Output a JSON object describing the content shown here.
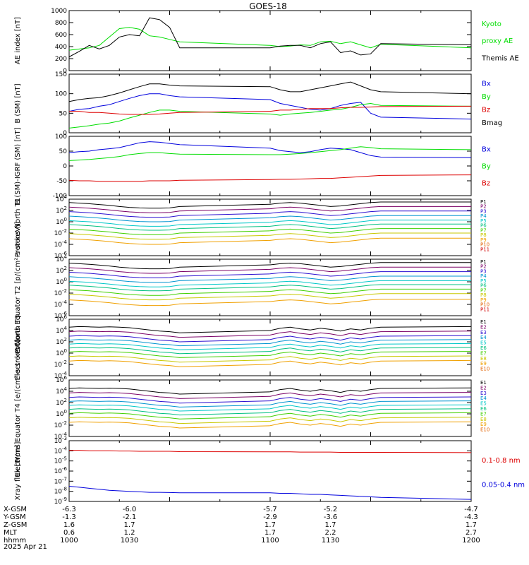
{
  "title": "GOES-18",
  "date": "2025 Apr 21",
  "colors": {
    "black": "#000000",
    "blue": "#0000dd",
    "green": "#00dd00",
    "red": "#dd0000",
    "P1": "#000000",
    "P2": "#7a0066",
    "P3": "#2b0fd0",
    "P4": "#0094d0",
    "P5": "#00c8c8",
    "P6": "#00c080",
    "P7": "#40d000",
    "P8": "#c8c800",
    "P9": "#f0a000",
    "P10": "#e06000",
    "P11": "#d00000"
  },
  "chart_data": [
    {
      "type": "line",
      "id": "ae",
      "ylabel": "AE index [nT]",
      "ylim": [
        0,
        1000
      ],
      "yticks": [
        "1000",
        "800",
        "600",
        "400",
        "200",
        "0"
      ],
      "x": [
        1000,
        1005,
        1010,
        1015,
        1020,
        1025,
        1030,
        1035,
        1040,
        1045,
        1050,
        1055,
        1100,
        1105,
        1110,
        1115,
        1120,
        1125,
        1130,
        1135,
        1140,
        1145,
        1150,
        1155,
        1200
      ],
      "series": [
        {
          "name": "Kyoto proxy AE",
          "color": "#00dd00",
          "values": [
            340,
            360,
            380,
            420,
            560,
            700,
            720,
            690,
            580,
            560,
            520,
            480,
            420,
            400,
            410,
            430,
            420,
            480,
            490,
            450,
            480,
            430,
            380,
            440,
            380
          ]
        },
        {
          "name": "Themis AE",
          "color": "#000000",
          "values": [
            230,
            320,
            420,
            360,
            420,
            560,
            600,
            580,
            880,
            850,
            720,
            380,
            380,
            410,
            420,
            420,
            380,
            450,
            480,
            300,
            330,
            260,
            280,
            450,
            430
          ]
        }
      ]
    },
    {
      "type": "line",
      "id": "bsm",
      "ylabel": "B (SM) [nT]",
      "ylim": [
        0,
        150
      ],
      "yticks": [
        "150",
        "100",
        "50",
        "0"
      ],
      "x": [
        1000,
        1005,
        1010,
        1015,
        1020,
        1025,
        1030,
        1035,
        1040,
        1045,
        1050,
        1055,
        1100,
        1105,
        1110,
        1115,
        1120,
        1125,
        1130,
        1135,
        1140,
        1145,
        1150,
        1155,
        1200
      ],
      "series": [
        {
          "name": "Bx",
          "color": "#0000dd",
          "values": [
            55,
            60,
            62,
            68,
            72,
            80,
            88,
            95,
            100,
            100,
            95,
            92,
            85,
            75,
            70,
            65,
            60,
            58,
            62,
            70,
            75,
            78,
            50,
            40,
            35
          ]
        },
        {
          "name": "By",
          "color": "#00dd00",
          "values": [
            12,
            15,
            18,
            22,
            25,
            30,
            38,
            45,
            52,
            58,
            58,
            55,
            48,
            45,
            48,
            50,
            52,
            55,
            58,
            60,
            65,
            72,
            75,
            70,
            68
          ]
        },
        {
          "name": "Bz",
          "color": "#dd0000",
          "values": [
            55,
            55,
            52,
            52,
            50,
            48,
            47,
            47,
            47,
            48,
            50,
            52,
            55,
            58,
            58,
            60,
            62,
            62,
            62,
            64,
            65,
            65,
            66,
            67,
            68
          ]
        },
        {
          "name": "Bmag",
          "color": "#000000",
          "values": [
            80,
            85,
            88,
            90,
            95,
            102,
            110,
            118,
            125,
            125,
            122,
            120,
            118,
            110,
            105,
            105,
            110,
            115,
            120,
            125,
            130,
            120,
            110,
            105,
            100
          ]
        }
      ]
    },
    {
      "type": "line",
      "id": "bigrf",
      "ylabel": "B (SM)-IGRF (SM) [nT]",
      "ylim": [
        -100,
        100
      ],
      "yticks": [
        "100",
        "50",
        "0",
        "-50",
        "-100"
      ],
      "x": [
        1000,
        1005,
        1010,
        1015,
        1020,
        1025,
        1030,
        1035,
        1040,
        1045,
        1050,
        1055,
        1100,
        1105,
        1110,
        1115,
        1120,
        1125,
        1130,
        1135,
        1140,
        1145,
        1150,
        1155,
        1200
      ],
      "series": [
        {
          "name": "Bx",
          "color": "#0000dd",
          "values": [
            45,
            48,
            50,
            55,
            58,
            62,
            70,
            78,
            82,
            80,
            76,
            72,
            60,
            52,
            48,
            45,
            48,
            55,
            60,
            58,
            55,
            45,
            35,
            30,
            28
          ]
        },
        {
          "name": "By",
          "color": "#00dd00",
          "values": [
            18,
            20,
            22,
            25,
            28,
            32,
            38,
            42,
            45,
            45,
            42,
            40,
            38,
            38,
            40,
            42,
            45,
            48,
            52,
            55,
            60,
            65,
            62,
            58,
            55
          ]
        },
        {
          "name": "Bz",
          "color": "#dd0000",
          "values": [
            -48,
            -50,
            -50,
            -52,
            -52,
            -52,
            -52,
            -52,
            -50,
            -50,
            -50,
            -48,
            -46,
            -45,
            -45,
            -44,
            -43,
            -42,
            -42,
            -40,
            -38,
            -36,
            -34,
            -32,
            -30
          ]
        }
      ]
    },
    {
      "type": "line",
      "id": "pnt1",
      "log": true,
      "ylabel": "Protons North T1",
      "ylim": [
        -6,
        4
      ],
      "yticks": [
        "10^4",
        "10^2",
        "10^0",
        "10^-2",
        "10^-4",
        "10^-6"
      ],
      "channels": [
        "P1",
        "P2",
        "P3",
        "P4",
        "P5",
        "P6",
        "P7",
        "P8",
        "P9",
        "P10",
        "P11"
      ],
      "x": [
        1000,
        1005,
        1010,
        1015,
        1020,
        1025,
        1030,
        1035,
        1040,
        1045,
        1050,
        1055,
        1100,
        1105,
        1110,
        1115,
        1120,
        1125,
        1130,
        1135,
        1140,
        1145,
        1150,
        1155,
        1200
      ],
      "shape": [
        0,
        -0.1,
        -0.2,
        -0.35,
        -0.5,
        -0.7,
        -0.85,
        -0.95,
        -1,
        -1,
        -0.95,
        -0.7,
        -0.3,
        -0.1,
        0,
        -0.1,
        -0.3,
        -0.5,
        -0.7,
        -0.6,
        -0.4,
        -0.2,
        0,
        0.1,
        0.1
      ],
      "base": [
        3.4,
        2.6,
        1.8,
        1.0,
        0.2,
        -0.5,
        -1.3,
        -2.1,
        -3.0
      ]
    },
    {
      "type": "line",
      "id": "pet2",
      "log": true,
      "ylabel": "Protons Equator T2 [p/(cm²-s-sr-keV)]",
      "ylim": [
        -6,
        4
      ],
      "yticks": [
        "10^4",
        "10^2",
        "10^0",
        "10^-2",
        "10^-4",
        "10^-6"
      ],
      "channels": [
        "P1",
        "P2",
        "P3",
        "P4",
        "P5",
        "P6",
        "P7",
        "P8",
        "P9",
        "P10",
        "P11"
      ],
      "x": [
        1000,
        1005,
        1010,
        1015,
        1020,
        1025,
        1030,
        1035,
        1040,
        1045,
        1050,
        1055,
        1100,
        1105,
        1110,
        1115,
        1120,
        1125,
        1130,
        1135,
        1140,
        1145,
        1150,
        1155,
        1200
      ],
      "shape": [
        0,
        -0.1,
        -0.2,
        -0.35,
        -0.5,
        -0.7,
        -0.85,
        -0.95,
        -1,
        -1,
        -0.95,
        -0.7,
        -0.3,
        -0.1,
        0,
        -0.1,
        -0.3,
        -0.5,
        -0.7,
        -0.6,
        -0.4,
        -0.2,
        0,
        0.1,
        0.1
      ],
      "base": [
        3.3,
        2.5,
        1.7,
        0.9,
        0.1,
        -0.6,
        -1.4,
        -2.2,
        -3.2
      ]
    },
    {
      "type": "line",
      "id": "ent3",
      "log": true,
      "ylabel": "Electrons North T3",
      "ylim": [
        -4,
        6
      ],
      "yticks": [
        "10^6",
        "10^4",
        "10^2",
        "10^0",
        "10^-2",
        "10^-4"
      ],
      "channels": [
        "E1",
        "E2",
        "E3",
        "E4",
        "E5",
        "E6",
        "E7",
        "E8",
        "E9",
        "E10"
      ],
      "x": [
        1000,
        1005,
        1010,
        1015,
        1020,
        1025,
        1030,
        1035,
        1040,
        1045,
        1050,
        1055,
        1100,
        1105,
        1110,
        1115,
        1120,
        1125,
        1130,
        1135,
        1140,
        1145,
        1150,
        1155,
        1200
      ],
      "shape": [
        0,
        0.1,
        0.05,
        0,
        0.05,
        0,
        -0.1,
        -0.3,
        -0.5,
        -0.7,
        -0.8,
        -1.0,
        -0.6,
        -0.2,
        0,
        -0.3,
        -0.5,
        -0.2,
        -0.4,
        -0.7,
        -0.3,
        -0.5,
        -0.2,
        0,
        0.1
      ],
      "base": [
        4.6,
        3.8,
        3.0,
        2.3,
        1.6,
        0.9,
        0.2,
        -0.6,
        -1.4
      ]
    },
    {
      "type": "line",
      "id": "eet4",
      "log": true,
      "ylabel": "Electrons Equator T4 [e/(cm²-s-sr-keV)]",
      "ylim": [
        -4,
        6
      ],
      "yticks": [
        "10^6",
        "10^4",
        "10^2",
        "10^0",
        "10^-2",
        "10^-4"
      ],
      "channels": [
        "E1",
        "E2",
        "E3",
        "E4",
        "E5",
        "E6",
        "E7",
        "E8",
        "E9",
        "E10"
      ],
      "x": [
        1000,
        1005,
        1010,
        1015,
        1020,
        1025,
        1030,
        1035,
        1040,
        1045,
        1050,
        1055,
        1100,
        1105,
        1110,
        1115,
        1120,
        1125,
        1130,
        1135,
        1140,
        1145,
        1150,
        1155,
        1200
      ],
      "shape": [
        0,
        0.1,
        0.05,
        0,
        0.05,
        0,
        -0.1,
        -0.3,
        -0.5,
        -0.7,
        -0.8,
        -1.0,
        -0.6,
        -0.2,
        0,
        -0.3,
        -0.5,
        -0.2,
        -0.4,
        -0.7,
        -0.3,
        -0.5,
        -0.2,
        0,
        0.1
      ],
      "base": [
        4.5,
        3.7,
        2.9,
        2.2,
        1.5,
        0.8,
        0.1,
        -0.7,
        -1.5
      ]
    },
    {
      "type": "line",
      "id": "xray",
      "log": true,
      "ylabel": "Xray flux [W/m²]",
      "ylim": [
        -9,
        -3
      ],
      "yticks": [
        "10^-3",
        "10^-4",
        "10^-5",
        "10^-6",
        "10^-7",
        "10^-8",
        "10^-9"
      ],
      "x": [
        1000,
        1005,
        1010,
        1015,
        1020,
        1025,
        1030,
        1035,
        1040,
        1045,
        1050,
        1055,
        1100,
        1105,
        1110,
        1115,
        1120,
        1125,
        1130,
        1135,
        1140,
        1145,
        1150,
        1155,
        1200
      ],
      "series": [
        {
          "name": "0.1-0.8 nm",
          "color": "#dd0000",
          "values": [
            -3.95,
            -3.95,
            -4,
            -4,
            -4,
            -4.02,
            -4.02,
            -4.05,
            -4.05,
            -4.05,
            -4.05,
            -4.08,
            -4.1,
            -4.1,
            -4.1,
            -4.12,
            -4.12,
            -4.12,
            -4.12,
            -4.15,
            -4.15,
            -4.15,
            -4.15,
            -4.15,
            -4.18
          ]
        },
        {
          "name": "0.05-0.4 nm",
          "color": "#0000dd",
          "values": [
            -7.5,
            -7.6,
            -7.7,
            -7.8,
            -7.9,
            -7.95,
            -8.0,
            -8.05,
            -8.1,
            -8.1,
            -8.12,
            -8.15,
            -8.15,
            -8.2,
            -8.2,
            -8.25,
            -8.3,
            -8.3,
            -8.35,
            -8.4,
            -8.45,
            -8.5,
            -8.55,
            -8.6,
            -8.8
          ]
        }
      ]
    }
  ],
  "right_labels": {
    "ae": [
      {
        "t": "Kyoto",
        "c": "#00dd00"
      },
      {
        "t": "proxy AE",
        "c": "#00dd00"
      },
      {
        "t": "Themis AE",
        "c": "#000000"
      }
    ],
    "bsm": [
      {
        "t": "Bx",
        "c": "#0000dd"
      },
      {
        "t": "By",
        "c": "#00dd00"
      },
      {
        "t": "Bz",
        "c": "#dd0000"
      },
      {
        "t": "Bmag",
        "c": "#000000"
      }
    ],
    "bigrf": [
      {
        "t": "Bx",
        "c": "#0000dd"
      },
      {
        "t": "By",
        "c": "#00dd00"
      },
      {
        "t": "Bz",
        "c": "#dd0000"
      }
    ],
    "xray": [
      {
        "t": "0.1-0.8 nm",
        "c": "#dd0000"
      },
      {
        "t": "0.05-0.4 nm",
        "c": "#0000dd"
      }
    ]
  },
  "axis_rows": [
    {
      "label": "X-GSM",
      "values": [
        "-6.3",
        "-6.0",
        "-5.7",
        "-5.2",
        "-4.7"
      ]
    },
    {
      "label": "Y-GSM",
      "values": [
        "-1.3",
        "-2.1",
        "-2.9",
        "-3.6",
        "-4.3"
      ]
    },
    {
      "label": "Z-GSM",
      "values": [
        "1.6",
        "1.7",
        "1.7",
        "1.7",
        "1.7"
      ]
    },
    {
      "label": "MLT",
      "values": [
        "0.6",
        "1.2",
        "1.7",
        "2.2",
        "2.7"
      ]
    },
    {
      "label": "hhmm",
      "values": [
        "1000",
        "1030",
        "1100",
        "1130",
        "1200"
      ]
    }
  ]
}
